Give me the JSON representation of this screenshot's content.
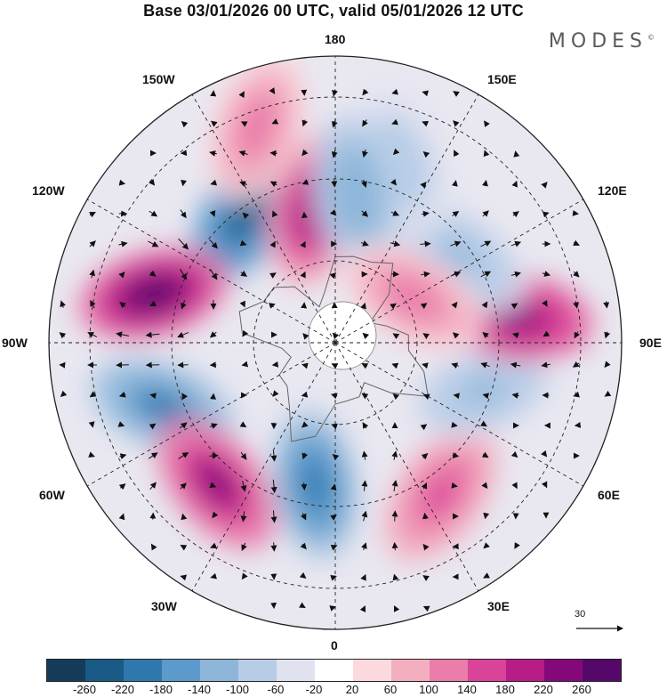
{
  "title": "Base 03/01/2026 00 UTC, valid 05/01/2026 12 UTC",
  "brand": "MODES",
  "brand_mark": "©",
  "longitude_labels": {
    "top": "180",
    "top_left": "150W",
    "top_right": "150E",
    "upper_left": "120W",
    "upper_right": "120E",
    "left": "90W",
    "right": "90E",
    "lower_left": "60W",
    "lower_right": "60E",
    "bottom_left": "30W",
    "bottom_right": "30E",
    "bottom": "0"
  },
  "vector_reference": "30",
  "colorbar": {
    "ticks": [
      "-260",
      "-220",
      "-180",
      "-140",
      "-100",
      "-60",
      "-20",
      "20",
      "60",
      "100",
      "140",
      "180",
      "220",
      "260"
    ],
    "colors": [
      "#143c5a",
      "#1a5a86",
      "#2f78ad",
      "#5c9acb",
      "#8db6d9",
      "#b7cde6",
      "#e0e2f0",
      "#ffffff",
      "#fbd9de",
      "#f3aec0",
      "#ea7daa",
      "#d94398",
      "#b71c87",
      "#85087a",
      "#55086a"
    ]
  },
  "anomalies": [
    {
      "lon": -145,
      "lat": 52,
      "value": -250
    },
    {
      "lon": -105,
      "lat": 44,
      "value": 265
    },
    {
      "lon": -70,
      "lat": 45,
      "value": -190
    },
    {
      "lon": -40,
      "lat": 45,
      "value": 230
    },
    {
      "lon": -8,
      "lat": 55,
      "value": -200
    },
    {
      "lon": 35,
      "lat": 45,
      "value": 150
    },
    {
      "lon": 72,
      "lat": 52,
      "value": -110
    },
    {
      "lon": 98,
      "lat": 45,
      "value": 245
    },
    {
      "lon": 125,
      "lat": 53,
      "value": -110
    },
    {
      "lon": 160,
      "lat": 43,
      "value": -90
    },
    {
      "lon": -170,
      "lat": 57,
      "value": 210
    },
    {
      "lon": 172,
      "lat": 53,
      "value": -140
    },
    {
      "lon": -160,
      "lat": 34,
      "value": 130
    },
    {
      "lon": 120,
      "lat": 68,
      "value": 120
    }
  ]
}
